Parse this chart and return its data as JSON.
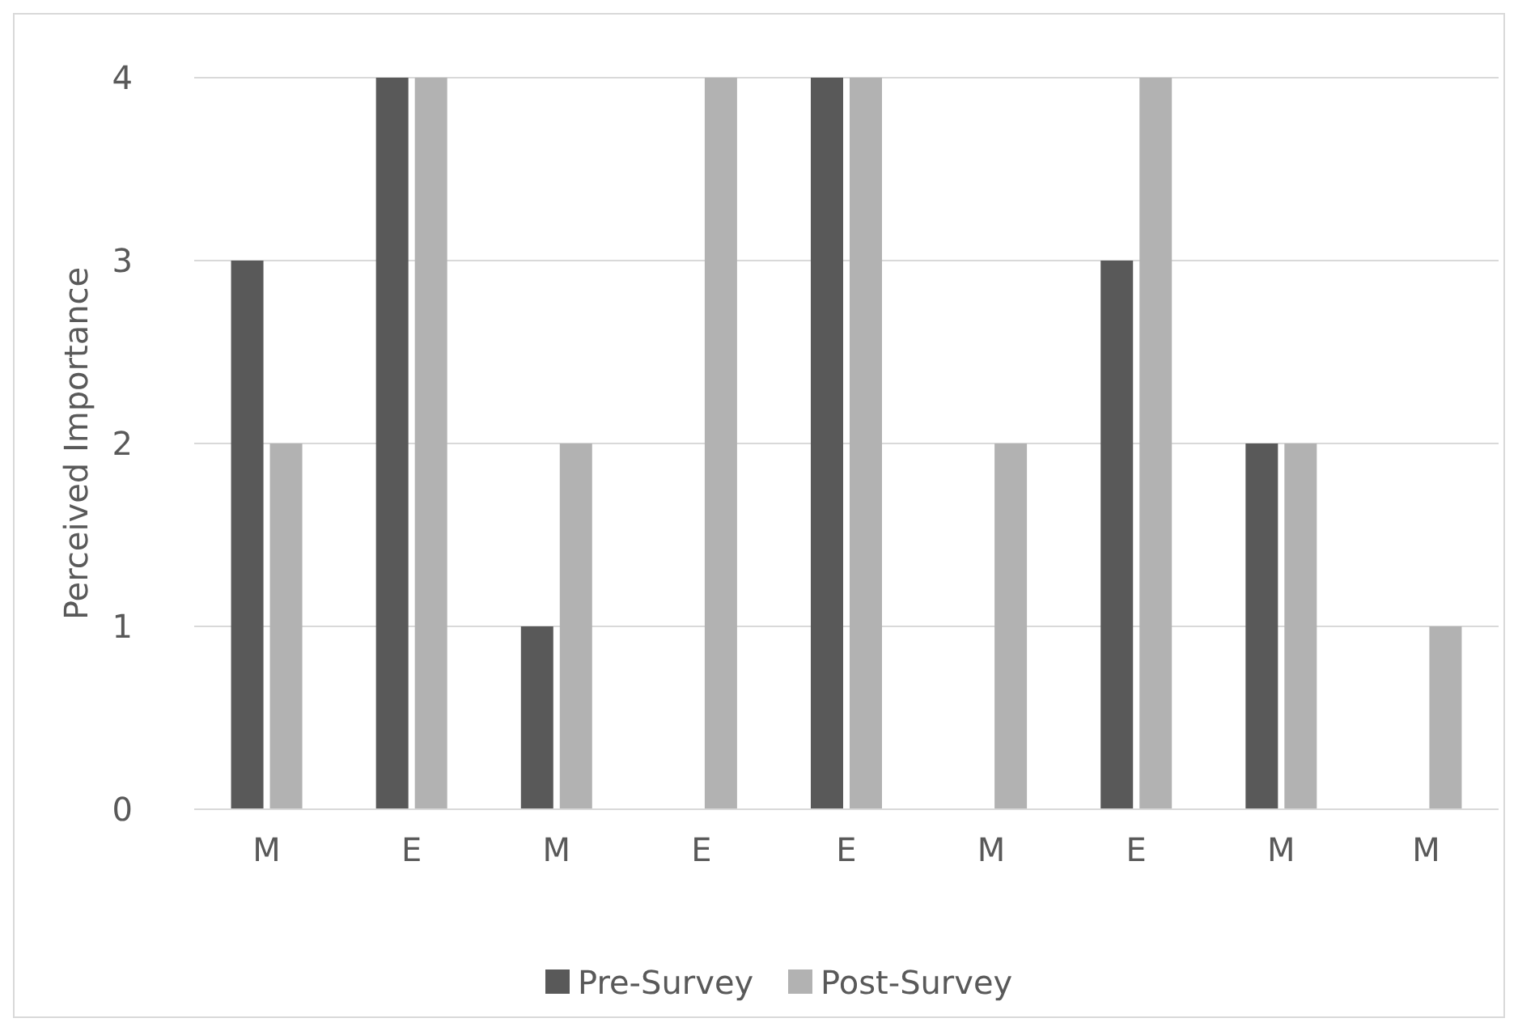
{
  "chart_data": {
    "type": "bar",
    "ylabel": "Perceived Importance",
    "categories": [
      "M",
      "E",
      "M",
      "E",
      "E",
      "M",
      "E",
      "M",
      "M"
    ],
    "series": [
      {
        "name": "Pre-Survey",
        "color": "#595959",
        "values": [
          3,
          4,
          1,
          0,
          4,
          0,
          3,
          2,
          0
        ]
      },
      {
        "name": "Post-Survey",
        "color": "#b2b2b2",
        "values": [
          2,
          4,
          2,
          4,
          4,
          2,
          4,
          2,
          1
        ]
      }
    ],
    "ylim": [
      0,
      4
    ],
    "yticks": [
      0,
      1,
      2,
      3,
      4
    ],
    "grid": "y",
    "legend": "bottom"
  }
}
